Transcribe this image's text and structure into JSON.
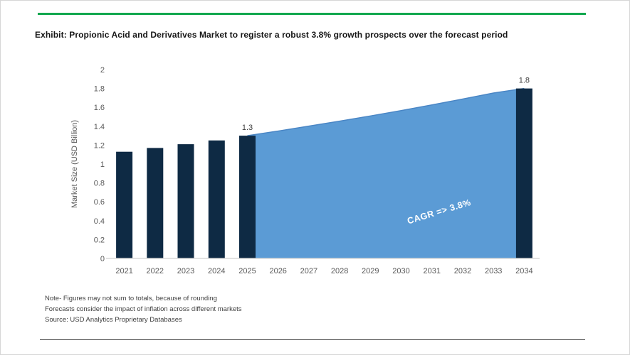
{
  "header": {
    "title": "Exhibit: Propionic Acid and Derivatives Market to register a robust 3.8% growth prospects over the forecast period"
  },
  "theme": {
    "accent_green": "#11a74e",
    "bar_navy": "#0e2a44",
    "area_blue": "#5b9bd5",
    "area_edge_blue": "#4a86c5",
    "axis_line_gray": "#d9d9d9",
    "tick_text_gray": "#595959",
    "data_label_gray": "#404040",
    "annotation_white": "#ffffff",
    "divider_gray": "#4d4d4d"
  },
  "chart_data": {
    "type": "bar+area",
    "title": "",
    "xlabel": "",
    "ylabel": "Market Size (USD Billion)",
    "ylim": [
      0,
      2
    ],
    "ytick_step": 0.2,
    "grid": "off",
    "legend": "none",
    "categories": [
      "2021",
      "2022",
      "2023",
      "2024",
      "2025",
      "2026",
      "2027",
      "2028",
      "2029",
      "2030",
      "2031",
      "2032",
      "2033",
      "2034"
    ],
    "bars": [
      {
        "year": "2021",
        "value": 1.13,
        "label": ""
      },
      {
        "year": "2022",
        "value": 1.17,
        "label": ""
      },
      {
        "year": "2023",
        "value": 1.21,
        "label": ""
      },
      {
        "year": "2024",
        "value": 1.25,
        "label": ""
      },
      {
        "year": "2025",
        "value": 1.3,
        "label": "1.3"
      },
      {
        "year": "2034",
        "value": 1.8,
        "label": "1.8"
      }
    ],
    "forecast_area": {
      "years": [
        "2025",
        "2026",
        "2027",
        "2028",
        "2029",
        "2030",
        "2031",
        "2032",
        "2033",
        "2034"
      ],
      "values": [
        1.3,
        1.349,
        1.401,
        1.454,
        1.509,
        1.566,
        1.626,
        1.688,
        1.752,
        1.8
      ],
      "annotation": "CAGR =>  3.8%",
      "cagr_percent": 3.8
    }
  },
  "footer": {
    "notes": [
      "Note- Figures may not sum to totals, because of rounding",
      "Forecasts consider the impact of inflation across different markets",
      "Source: USD Analytics Proprietary Databases"
    ]
  }
}
